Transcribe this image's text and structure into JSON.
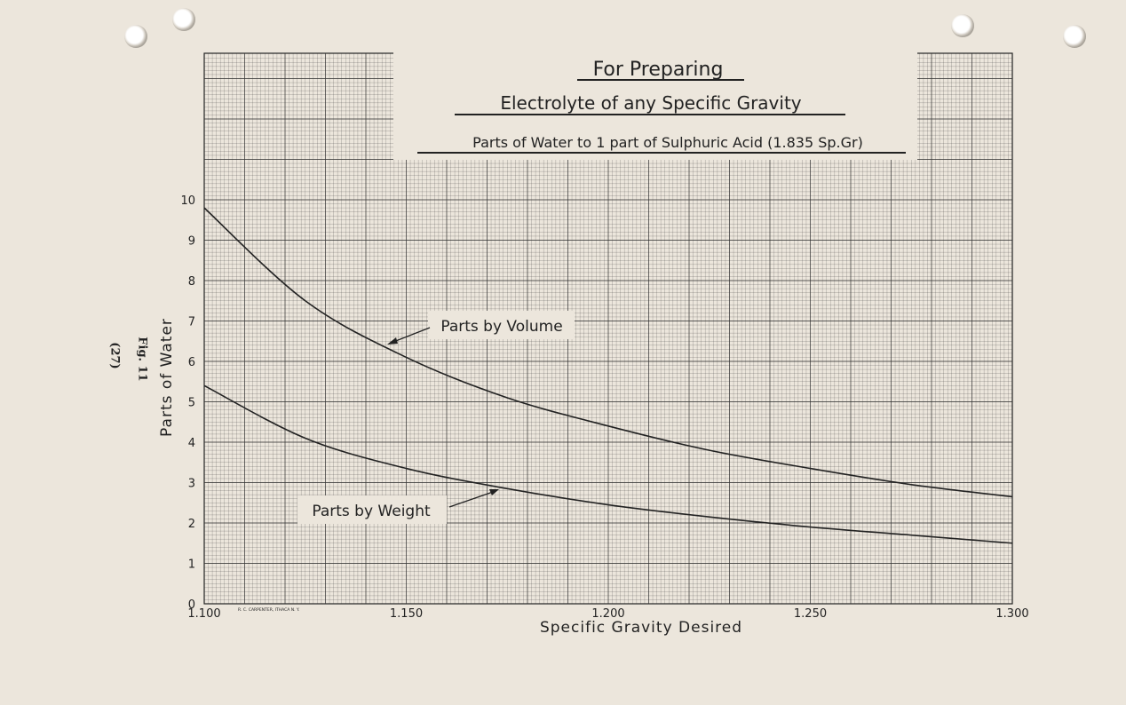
{
  "page": {
    "side_note": "Fig. 11",
    "page_number": "(27)",
    "printer_imprint": "R. C. CARPENTER, ITHACA N. Y."
  },
  "chart_data": {
    "type": "line",
    "title": "For Preparing",
    "subtitle": "Electrolyte of any Specific Gravity",
    "subtitle2": "Parts of Water to 1 part of Sulphuric Acid (1.835 Sp.Gr)",
    "xlabel": "Specific Gravity Desired",
    "ylabel": "Parts of Water",
    "xlim": [
      1.1,
      1.3
    ],
    "ylim": [
      0,
      10
    ],
    "x_ticks": [
      "1.100",
      "1.150",
      "1.200",
      "1.250",
      "1.300"
    ],
    "y_ticks": [
      "0",
      "1",
      "2",
      "3",
      "4",
      "5",
      "6",
      "7",
      "8",
      "9",
      "10"
    ],
    "grid": true,
    "x": [
      1.1,
      1.125,
      1.15,
      1.175,
      1.2,
      1.225,
      1.25,
      1.275,
      1.3
    ],
    "series": [
      {
        "name": "Parts by Volume",
        "values": [
          9.8,
          7.5,
          6.1,
          5.1,
          4.4,
          3.8,
          3.35,
          2.95,
          2.65
        ]
      },
      {
        "name": "Parts by Weight",
        "values": [
          5.4,
          4.1,
          3.35,
          2.85,
          2.45,
          2.15,
          1.9,
          1.7,
          1.5
        ]
      }
    ],
    "colors": {
      "line": "#222222",
      "grid": "#555555",
      "paper": "#ece6dc"
    }
  }
}
